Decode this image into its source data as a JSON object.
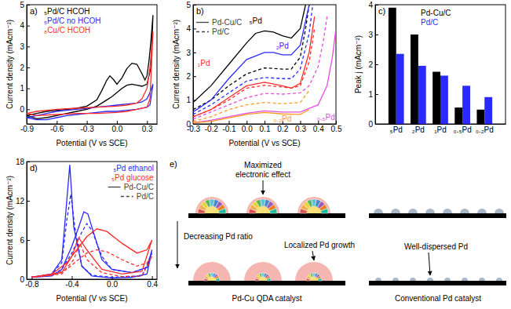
{
  "chart_data": [
    {
      "type": "line",
      "title": "a)",
      "x_label": "Potential (V vs SCE)",
      "y_label": "Current density (mAcm⁻²)",
      "xlim": [
        -0.9,
        0.4
      ],
      "xticks": [
        -0.9,
        -0.6,
        -0.3,
        {
          "value": 0,
          "label": "0.0"
        },
        0.3
      ],
      "ylim": [
        -0.7,
        5
      ],
      "yticks": [
        0,
        1,
        2,
        3,
        4,
        5
      ],
      "legend": "upper left",
      "series": [
        {
          "name": "₅Pd/C HCOH",
          "color": "#000000",
          "x": [
            -0.9,
            -0.8,
            -0.7,
            -0.6,
            -0.5,
            -0.4,
            -0.3,
            -0.2,
            -0.15,
            -0.1,
            -0.07,
            -0.03,
            0.0,
            0.05,
            0.1,
            0.15,
            0.2,
            0.25,
            0.28,
            0.3,
            0.32,
            0.34,
            0.36,
            0.34,
            0.3,
            0.25,
            0.2,
            0.15,
            0.1,
            0.05,
            0.0,
            -0.05,
            -0.1,
            -0.15,
            -0.2,
            -0.3,
            -0.4,
            -0.5,
            -0.6,
            -0.7,
            -0.8,
            -0.9
          ],
          "values": [
            -0.3,
            -0.2,
            -0.1,
            -0.05,
            0.0,
            0.05,
            0.15,
            0.45,
            0.9,
            1.4,
            1.6,
            1.4,
            1.2,
            1.5,
            1.95,
            2.2,
            2.15,
            1.7,
            1.4,
            1.6,
            2.3,
            3.3,
            4.5,
            2.0,
            1.2,
            1.1,
            1.15,
            1.2,
            1.15,
            1.0,
            0.8,
            0.6,
            0.45,
            0.3,
            0.15,
            0.0,
            -0.1,
            -0.2,
            -0.3,
            -0.4,
            -0.45,
            -0.3
          ]
        },
        {
          "name": "₅Pd/C no HCOH",
          "color": "#2a2aff",
          "x": [
            -0.9,
            -0.8,
            -0.7,
            -0.6,
            -0.5,
            -0.4,
            -0.3,
            -0.2,
            -0.1,
            0.0,
            0.1,
            0.2,
            0.25,
            0.3,
            0.33,
            0.36,
            0.33,
            0.3,
            0.2,
            0.1,
            0.0,
            -0.1,
            -0.2,
            -0.3,
            -0.4,
            -0.5,
            -0.6,
            -0.7,
            -0.8,
            -0.9
          ],
          "values": [
            -0.4,
            -0.3,
            -0.2,
            -0.1,
            -0.05,
            0.0,
            0.05,
            0.1,
            0.15,
            0.2,
            0.25,
            0.3,
            0.35,
            0.5,
            0.8,
            1.2,
            0.2,
            0.1,
            0.0,
            -0.05,
            -0.1,
            -0.1,
            -0.15,
            -0.2,
            -0.25,
            -0.3,
            -0.4,
            -0.5,
            -0.5,
            -0.4
          ]
        },
        {
          "name": "₈Cu/C HCOH",
          "color": "#ff2b2b",
          "x": [
            -0.9,
            -0.8,
            -0.6,
            -0.4,
            -0.2,
            0.0,
            0.1,
            0.2,
            0.25,
            0.3,
            0.33,
            0.36,
            0.33,
            0.3,
            0.2,
            0.1,
            0.0,
            -0.2,
            -0.4,
            -0.6,
            -0.8,
            -0.9
          ],
          "values": [
            -0.2,
            -0.1,
            0.0,
            0.05,
            0.1,
            0.15,
            0.2,
            0.3,
            0.5,
            1.0,
            2.0,
            3.7,
            0.5,
            0.1,
            0.0,
            -0.1,
            -0.15,
            -0.2,
            -0.2,
            -0.25,
            -0.3,
            -0.2
          ]
        }
      ]
    },
    {
      "type": "line",
      "title": "b)",
      "x_label": "Potential (V vs SCE)",
      "y_label": "Current density (mAcm⁻²)",
      "xlim": [
        -0.3,
        0.5
      ],
      "xticks": [
        -0.3,
        -0.2,
        -0.1,
        {
          "value": 0,
          "label": "0.0"
        },
        0.1,
        0.2,
        0.3,
        0.4,
        0.5
      ],
      "ylim": [
        0,
        5
      ],
      "yticks": [
        0,
        1,
        2,
        3,
        4,
        5
      ],
      "legend": "upper left",
      "legend_entries": [
        {
          "name": "Pd-Cu/C",
          "line_style": "solid"
        },
        {
          "name": "Pd/C",
          "line_style": "dashed"
        }
      ],
      "series": [
        {
          "name": "₅Pd",
          "color": "#000000",
          "curves": [
            {
              "x": [
                -0.3,
                -0.2,
                -0.1,
                0.0,
                0.05,
                0.1,
                0.15,
                0.2,
                0.25,
                0.3,
                0.33
              ],
              "values": [
                0.9,
                1.6,
                2.5,
                3.4,
                3.8,
                3.9,
                3.85,
                3.7,
                3.6,
                4.0,
                5.0
              ]
            },
            {
              "x": [
                -0.3,
                -0.2,
                -0.1,
                0.0,
                0.1,
                0.2,
                0.25,
                0.3,
                0.33,
                0.35
              ],
              "values": [
                0.6,
                1.0,
                1.6,
                2.1,
                2.35,
                2.3,
                2.3,
                2.8,
                4.0,
                5.0
              ]
            }
          ]
        },
        {
          "name": "₂Pd",
          "color": "#2a2aff",
          "curves": [
            {
              "x": [
                -0.3,
                -0.2,
                -0.1,
                0.0,
                0.1,
                0.15,
                0.2,
                0.25,
                0.3,
                0.35
              ],
              "values": [
                0.5,
                1.0,
                1.9,
                2.7,
                3.0,
                3.0,
                2.9,
                2.9,
                3.3,
                5.0
              ]
            },
            {
              "x": [
                -0.3,
                -0.2,
                -0.1,
                0.0,
                0.1,
                0.2,
                0.25,
                0.3,
                0.35,
                0.37
              ],
              "values": [
                0.4,
                0.8,
                1.3,
                1.8,
                1.95,
                1.9,
                1.9,
                2.3,
                3.8,
                5.0
              ]
            }
          ]
        },
        {
          "name": "₁Pd",
          "color": "#ff2b2b",
          "curves": [
            {
              "x": [
                -0.3,
                -0.2,
                -0.1,
                0.0,
                0.1,
                0.2,
                0.25,
                0.3,
                0.35,
                0.38
              ],
              "values": [
                0.3,
                0.6,
                1.1,
                1.6,
                1.75,
                1.6,
                1.5,
                1.7,
                3.0,
                4.5
              ]
            },
            {
              "x": [
                -0.3,
                -0.2,
                -0.1,
                0.0,
                0.1,
                0.2,
                0.25,
                0.3,
                0.35,
                0.38
              ],
              "values": [
                0.3,
                0.6,
                1.0,
                1.5,
                1.62,
                1.55,
                1.5,
                1.6,
                2.6,
                4.0
              ]
            }
          ]
        },
        {
          "name": "₀.₅Pd",
          "color": "#e34de3",
          "curves": [
            {
              "x": [
                -0.3,
                -0.2,
                -0.1,
                0.0,
                0.1,
                0.2,
                0.3,
                0.4,
                0.45,
                0.48,
                0.5
              ],
              "values": [
                0.05,
                0.15,
                0.3,
                0.45,
                0.55,
                0.5,
                0.5,
                0.8,
                1.6,
                2.8,
                4.0
              ]
            },
            {
              "x": [
                -0.3,
                -0.2,
                -0.1,
                0.0,
                0.1,
                0.2,
                0.3,
                0.35,
                0.4,
                0.43,
                0.45
              ],
              "values": [
                0.2,
                0.5,
                0.8,
                1.1,
                1.28,
                1.25,
                1.3,
                1.6,
                2.4,
                3.5,
                4.5
              ]
            }
          ]
        },
        {
          "name": "₀.₂Pd",
          "color": "#ff9a1f",
          "curves": [
            {
              "x": [
                -0.3,
                -0.2,
                -0.1,
                0.0,
                0.1,
                0.2,
                0.3,
                0.35
              ],
              "values": [
                0.05,
                0.1,
                0.25,
                0.4,
                0.48,
                0.42,
                0.4,
                0.6
              ]
            },
            {
              "x": [
                -0.3,
                -0.2,
                -0.1,
                0.0,
                0.1,
                0.2,
                0.3,
                0.35
              ],
              "values": [
                0.1,
                0.3,
                0.6,
                0.8,
                0.9,
                0.85,
                0.9,
                1.4
              ]
            }
          ]
        }
      ]
    },
    {
      "type": "bar",
      "title": "c)",
      "y_label": "Peak j (mAcm⁻²)",
      "categories": [
        "₅Pd",
        "₂Pd",
        "₁Pd",
        "₀.₅Pd",
        "₀.₂Pd"
      ],
      "ylim": [
        0,
        4
      ],
      "yticks": [
        0,
        1,
        2,
        3,
        4
      ],
      "legend": "top",
      "series": [
        {
          "name": "Pd-Cu/C",
          "color": "#000000",
          "values": [
            3.9,
            3.0,
            1.75,
            0.55,
            0.48
          ]
        },
        {
          "name": "Pd/C",
          "color": "#2a2aff",
          "values": [
            2.35,
            1.95,
            1.62,
            1.28,
            0.9
          ]
        }
      ]
    },
    {
      "type": "line",
      "title": "d)",
      "x_label": "Potential (V vs SCE)",
      "y_label": "Current density (mAcm⁻²)",
      "xlim": [
        -0.85,
        0.45
      ],
      "xticks": [
        -0.8,
        -0.4,
        {
          "value": 0,
          "label": "0.0"
        },
        0.4
      ],
      "ylim": [
        0,
        18
      ],
      "yticks": [
        0,
        6,
        12,
        18
      ],
      "legend": "upper right",
      "legend_entries": [
        {
          "name": "Pd-Cu/C",
          "line_style": "solid"
        },
        {
          "name": "Pd/C",
          "line_style": "dashed"
        }
      ],
      "series": [
        {
          "name": "₅Pd ethanol",
          "color": "#2a2aff",
          "curves": [
            {
              "x": [
                -0.8,
                -0.6,
                -0.5,
                -0.4,
                -0.33,
                -0.28,
                -0.24,
                -0.2,
                -0.1,
                0.0,
                0.2,
                0.35,
                0.4,
                0.35,
                0.2,
                0.0,
                -0.2,
                -0.3,
                -0.38,
                -0.42,
                -0.45,
                -0.5,
                -0.6,
                -0.8
              ],
              "values": [
                0.3,
                0.5,
                1.5,
                5,
                8,
                10.3,
                10,
                8,
                3,
                1.5,
                1.0,
                1.8,
                4.5,
                0.8,
                0.3,
                0.2,
                0.5,
                2,
                8,
                17.5,
                12,
                3,
                0.8,
                0.3
              ]
            },
            {
              "x": [
                -0.8,
                -0.6,
                -0.5,
                -0.4,
                -0.3,
                -0.25,
                -0.2,
                -0.1,
                0.0,
                0.2,
                0.35,
                0.4,
                0.3,
                0.0,
                -0.2,
                -0.3,
                -0.37,
                -0.41,
                -0.45,
                -0.5,
                -0.6,
                -0.8
              ],
              "values": [
                0.3,
                0.6,
                1.5,
                4,
                7.2,
                8.5,
                7.5,
                3.5,
                1.5,
                1.0,
                1.8,
                4,
                0.5,
                0.3,
                0.6,
                2,
                8,
                13,
                9,
                2.5,
                0.8,
                0.3
              ]
            }
          ]
        },
        {
          "name": "₅Pd glucose",
          "color": "#ff2b2b",
          "curves": [
            {
              "x": [
                -0.8,
                -0.6,
                -0.45,
                -0.35,
                -0.25,
                -0.15,
                -0.05,
                0.1,
                0.25,
                0.35,
                0.4,
                0.3,
                0.1,
                -0.1,
                -0.25,
                -0.33,
                -0.4,
                -0.5,
                -0.8
              ],
              "values": [
                0.3,
                0.8,
                2.5,
                4.5,
                6.5,
                7.7,
                7.3,
                5.5,
                4,
                4.5,
                6,
                1.2,
                0.8,
                1.5,
                4.5,
                6.3,
                3.5,
                1,
                0.3
              ]
            },
            {
              "x": [
                -0.8,
                -0.6,
                -0.45,
                -0.35,
                -0.25,
                -0.15,
                -0.05,
                0.1,
                0.25,
                0.35,
                0.4,
                0.3,
                0.1,
                -0.1,
                -0.25,
                -0.32,
                -0.38,
                -0.5,
                -0.8
              ],
              "values": [
                0.3,
                0.6,
                1.5,
                2.8,
                4.0,
                4.5,
                4.2,
                3,
                2,
                2.5,
                3.5,
                0.5,
                0.4,
                1,
                3,
                5.5,
                3,
                0.8,
                0.3
              ]
            }
          ]
        }
      ]
    }
  ],
  "diagram": {
    "label": "e)",
    "callouts": [
      "Maximized electronic effect",
      "Localized Pd growth",
      "Well-dispersed Pd"
    ],
    "trend": "Decreasing Pd ratio",
    "columns": [
      "Pd-Cu QDA catalyst",
      "Conventional Pd catalyst"
    ]
  }
}
